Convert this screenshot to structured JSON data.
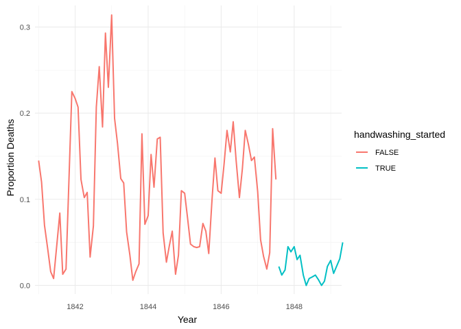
{
  "chart_data": {
    "type": "line",
    "title": "",
    "xlabel": "Year",
    "ylabel": "Proportion Deaths",
    "xlim": [
      1840.9,
      1849.3
    ],
    "ylim": [
      -0.01,
      0.325
    ],
    "x_ticks": [
      1842,
      1844,
      1846,
      1848
    ],
    "y_ticks": [
      0.0,
      0.1,
      0.2,
      0.3
    ],
    "y_tick_labels": [
      "0.0",
      "0.1",
      "0.2",
      "0.3"
    ],
    "grid": true,
    "legend": {
      "title": "handwashing_started",
      "position": "right",
      "entries": [
        {
          "label": "FALSE",
          "color": "#F8766D"
        },
        {
          "label": "TRUE",
          "color": "#00BFC4"
        }
      ]
    },
    "series": [
      {
        "name": "FALSE",
        "color": "#F8766D",
        "points": [
          [
            1841.0,
            0.145
          ],
          [
            1841.08,
            0.12
          ],
          [
            1841.16,
            0.07
          ],
          [
            1841.25,
            0.042
          ],
          [
            1841.33,
            0.016
          ],
          [
            1841.41,
            0.008
          ],
          [
            1841.5,
            0.048
          ],
          [
            1841.58,
            0.084
          ],
          [
            1841.66,
            0.013
          ],
          [
            1841.75,
            0.019
          ],
          [
            1841.83,
            0.122
          ],
          [
            1841.91,
            0.225
          ],
          [
            1842.0,
            0.217
          ],
          [
            1842.08,
            0.207
          ],
          [
            1842.16,
            0.123
          ],
          [
            1842.25,
            0.102
          ],
          [
            1842.33,
            0.108
          ],
          [
            1842.41,
            0.033
          ],
          [
            1842.5,
            0.069
          ],
          [
            1842.58,
            0.207
          ],
          [
            1842.66,
            0.254
          ],
          [
            1842.75,
            0.184
          ],
          [
            1842.83,
            0.293
          ],
          [
            1842.91,
            0.23
          ],
          [
            1843.0,
            0.314
          ],
          [
            1843.08,
            0.194
          ],
          [
            1843.16,
            0.165
          ],
          [
            1843.25,
            0.124
          ],
          [
            1843.33,
            0.119
          ],
          [
            1843.41,
            0.062
          ],
          [
            1843.5,
            0.035
          ],
          [
            1843.58,
            0.006
          ],
          [
            1843.66,
            0.016
          ],
          [
            1843.75,
            0.025
          ],
          [
            1843.83,
            0.176
          ],
          [
            1843.91,
            0.071
          ],
          [
            1844.0,
            0.081
          ],
          [
            1844.08,
            0.152
          ],
          [
            1844.16,
            0.114
          ],
          [
            1844.25,
            0.17
          ],
          [
            1844.33,
            0.172
          ],
          [
            1844.41,
            0.061
          ],
          [
            1844.5,
            0.027
          ],
          [
            1844.58,
            0.046
          ],
          [
            1844.66,
            0.063
          ],
          [
            1844.75,
            0.013
          ],
          [
            1844.83,
            0.035
          ],
          [
            1844.91,
            0.11
          ],
          [
            1845.0,
            0.107
          ],
          [
            1845.08,
            0.078
          ],
          [
            1845.16,
            0.048
          ],
          [
            1845.25,
            0.045
          ],
          [
            1845.33,
            0.044
          ],
          [
            1845.41,
            0.045
          ],
          [
            1845.5,
            0.072
          ],
          [
            1845.58,
            0.063
          ],
          [
            1845.66,
            0.037
          ],
          [
            1845.75,
            0.1
          ],
          [
            1845.83,
            0.148
          ],
          [
            1845.91,
            0.11
          ],
          [
            1846.0,
            0.107
          ],
          [
            1846.08,
            0.141
          ],
          [
            1846.16,
            0.18
          ],
          [
            1846.25,
            0.155
          ],
          [
            1846.33,
            0.19
          ],
          [
            1846.41,
            0.145
          ],
          [
            1846.5,
            0.102
          ],
          [
            1846.58,
            0.135
          ],
          [
            1846.66,
            0.18
          ],
          [
            1846.75,
            0.163
          ],
          [
            1846.83,
            0.145
          ],
          [
            1846.91,
            0.149
          ],
          [
            1847.0,
            0.109
          ],
          [
            1847.08,
            0.053
          ],
          [
            1847.16,
            0.034
          ],
          [
            1847.25,
            0.019
          ],
          [
            1847.33,
            0.038
          ],
          [
            1847.41,
            0.182
          ],
          [
            1847.5,
            0.123
          ]
        ]
      },
      {
        "name": "TRUE",
        "color": "#00BFC4",
        "points": [
          [
            1847.58,
            0.022
          ],
          [
            1847.66,
            0.012
          ],
          [
            1847.75,
            0.018
          ],
          [
            1847.83,
            0.045
          ],
          [
            1847.91,
            0.039
          ],
          [
            1848.0,
            0.045
          ],
          [
            1848.08,
            0.03
          ],
          [
            1848.16,
            0.035
          ],
          [
            1848.25,
            0.012
          ],
          [
            1848.33,
            0.0
          ],
          [
            1848.41,
            0.008
          ],
          [
            1848.5,
            0.01
          ],
          [
            1848.58,
            0.012
          ],
          [
            1848.66,
            0.007
          ],
          [
            1848.75,
            0.0
          ],
          [
            1848.83,
            0.005
          ],
          [
            1848.91,
            0.022
          ],
          [
            1849.0,
            0.029
          ],
          [
            1849.08,
            0.014
          ],
          [
            1849.16,
            0.022
          ],
          [
            1849.25,
            0.031
          ],
          [
            1849.33,
            0.05
          ]
        ]
      }
    ]
  }
}
